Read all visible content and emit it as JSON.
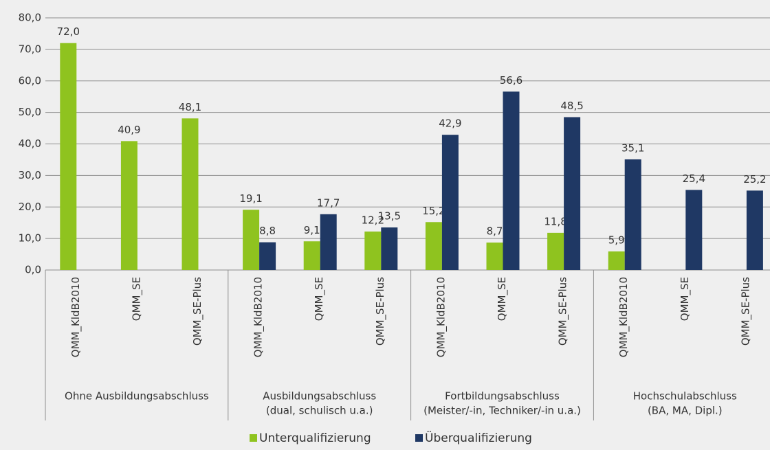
{
  "chart_data": {
    "type": "bar",
    "groups": [
      {
        "label": [
          "Ohne Ausbildungsabschluss"
        ],
        "categories": [
          "QMM_KldB2010",
          "QMM_SE",
          "QMM_SE-Plus"
        ]
      },
      {
        "label": [
          "Ausbildungsabschluss",
          "(dual, schulisch u.a.)"
        ],
        "categories": [
          "QMM_KldB2010",
          "QMM_SE",
          "QMM_SE-Plus"
        ]
      },
      {
        "label": [
          "Fortbildungsabschluss",
          "(Meister/-in, Techniker/-in u.a.)"
        ],
        "categories": [
          "QMM_KldB2010",
          "QMM_SE",
          "QMM_SE-Plus"
        ]
      },
      {
        "label": [
          "Hochschulabschluss",
          "(BA, MA,  Dipl.)"
        ],
        "categories": [
          "QMM_KldB2010",
          "QMM_SE",
          "QMM_SE-Plus"
        ]
      }
    ],
    "series": [
      {
        "name": "Unterqualifizierung",
        "color": "#8fc31f",
        "values": [
          72.0,
          40.9,
          48.1,
          19.1,
          9.1,
          12.2,
          15.2,
          8.7,
          11.8,
          5.9,
          null,
          null
        ],
        "value_labels": [
          "72,0",
          "40,9",
          "48,1",
          "19,1",
          "9,1",
          "12,2",
          "15,2",
          "8,7",
          "11,8",
          "5,9",
          null,
          null
        ]
      },
      {
        "name": "Überqualifizierung",
        "color": "#1f3864",
        "values": [
          null,
          null,
          null,
          8.8,
          17.7,
          13.5,
          42.9,
          56.6,
          48.5,
          35.1,
          25.4,
          25.2
        ],
        "value_labels": [
          null,
          null,
          null,
          "8,8",
          "17,7",
          "13,5",
          "42,9",
          "56,6",
          "48,5",
          "35,1",
          "25,4",
          "25,2"
        ]
      }
    ],
    "ylim": [
      0,
      80
    ],
    "yticks": [
      {
        "value": 0,
        "label": "0,0"
      },
      {
        "value": 10,
        "label": "10,0"
      },
      {
        "value": 20,
        "label": "20,0"
      },
      {
        "value": 30,
        "label": "30,0"
      },
      {
        "value": 40,
        "label": "40,0"
      },
      {
        "value": 50,
        "label": "50,0"
      },
      {
        "value": 60,
        "label": "60,0"
      },
      {
        "value": 70,
        "label": "70,0"
      },
      {
        "value": 80,
        "label": "80,0"
      }
    ],
    "grid": true
  }
}
